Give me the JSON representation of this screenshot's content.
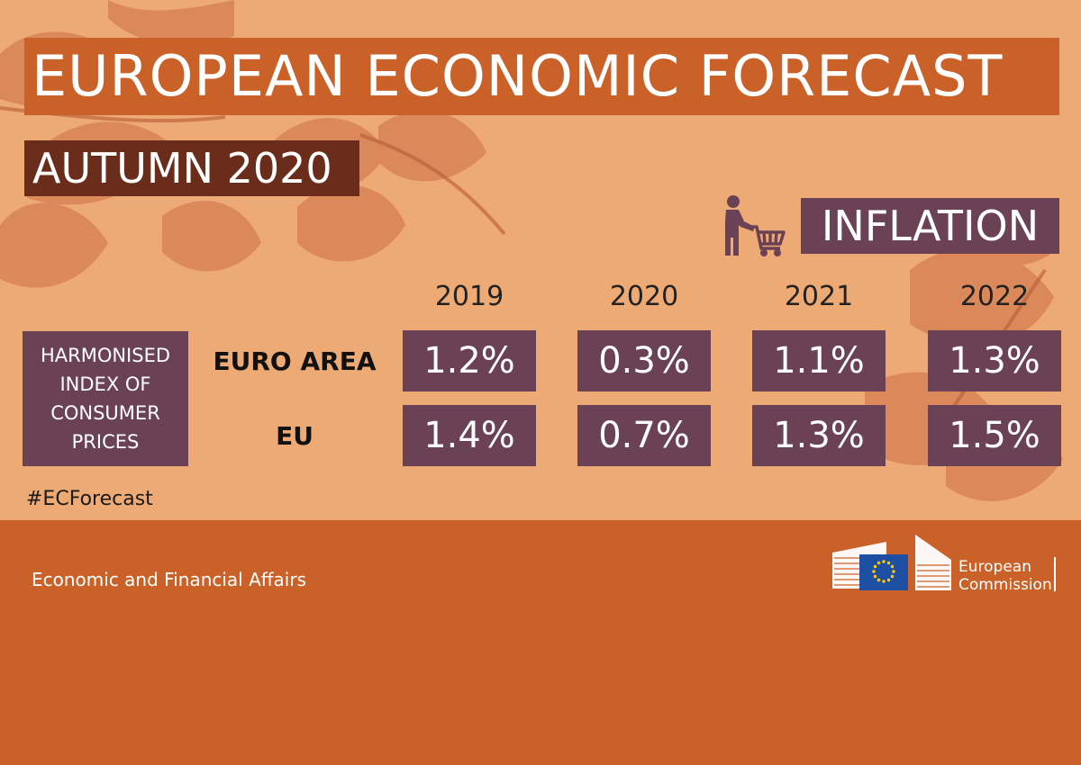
{
  "title": "EUROPEAN ECONOMIC FORECAST",
  "subtitle": "AUTUMN 2020",
  "section_label": "INFLATION",
  "icons": {
    "shopping": "person-with-shopping-cart-icon",
    "logo": "european-commission-logo"
  },
  "row_header_lines": [
    "HARMONISED",
    "INDEX OF",
    "CONSUMER",
    "PRICES"
  ],
  "years": [
    "2019",
    "2020",
    "2021",
    "2022"
  ],
  "rows": [
    {
      "label": "EURO AREA",
      "values": [
        "1.2%",
        "0.3%",
        "1.1%",
        "1.3%"
      ]
    },
    {
      "label": "EU",
      "values": [
        "1.4%",
        "0.7%",
        "1.3%",
        "1.5%"
      ]
    }
  ],
  "hashtag": "#ECForecast",
  "footer": {
    "department": "Economic and Financial Affairs",
    "logo_lines": [
      "European",
      "Commission"
    ]
  },
  "colors": {
    "background": "#eeaa74",
    "accent_orange": "#c96128",
    "dark_brown": "#6b2d1b",
    "plum": "#6b4155",
    "eu_blue": "#1f4fa2",
    "eu_star": "#ffcc00"
  }
}
